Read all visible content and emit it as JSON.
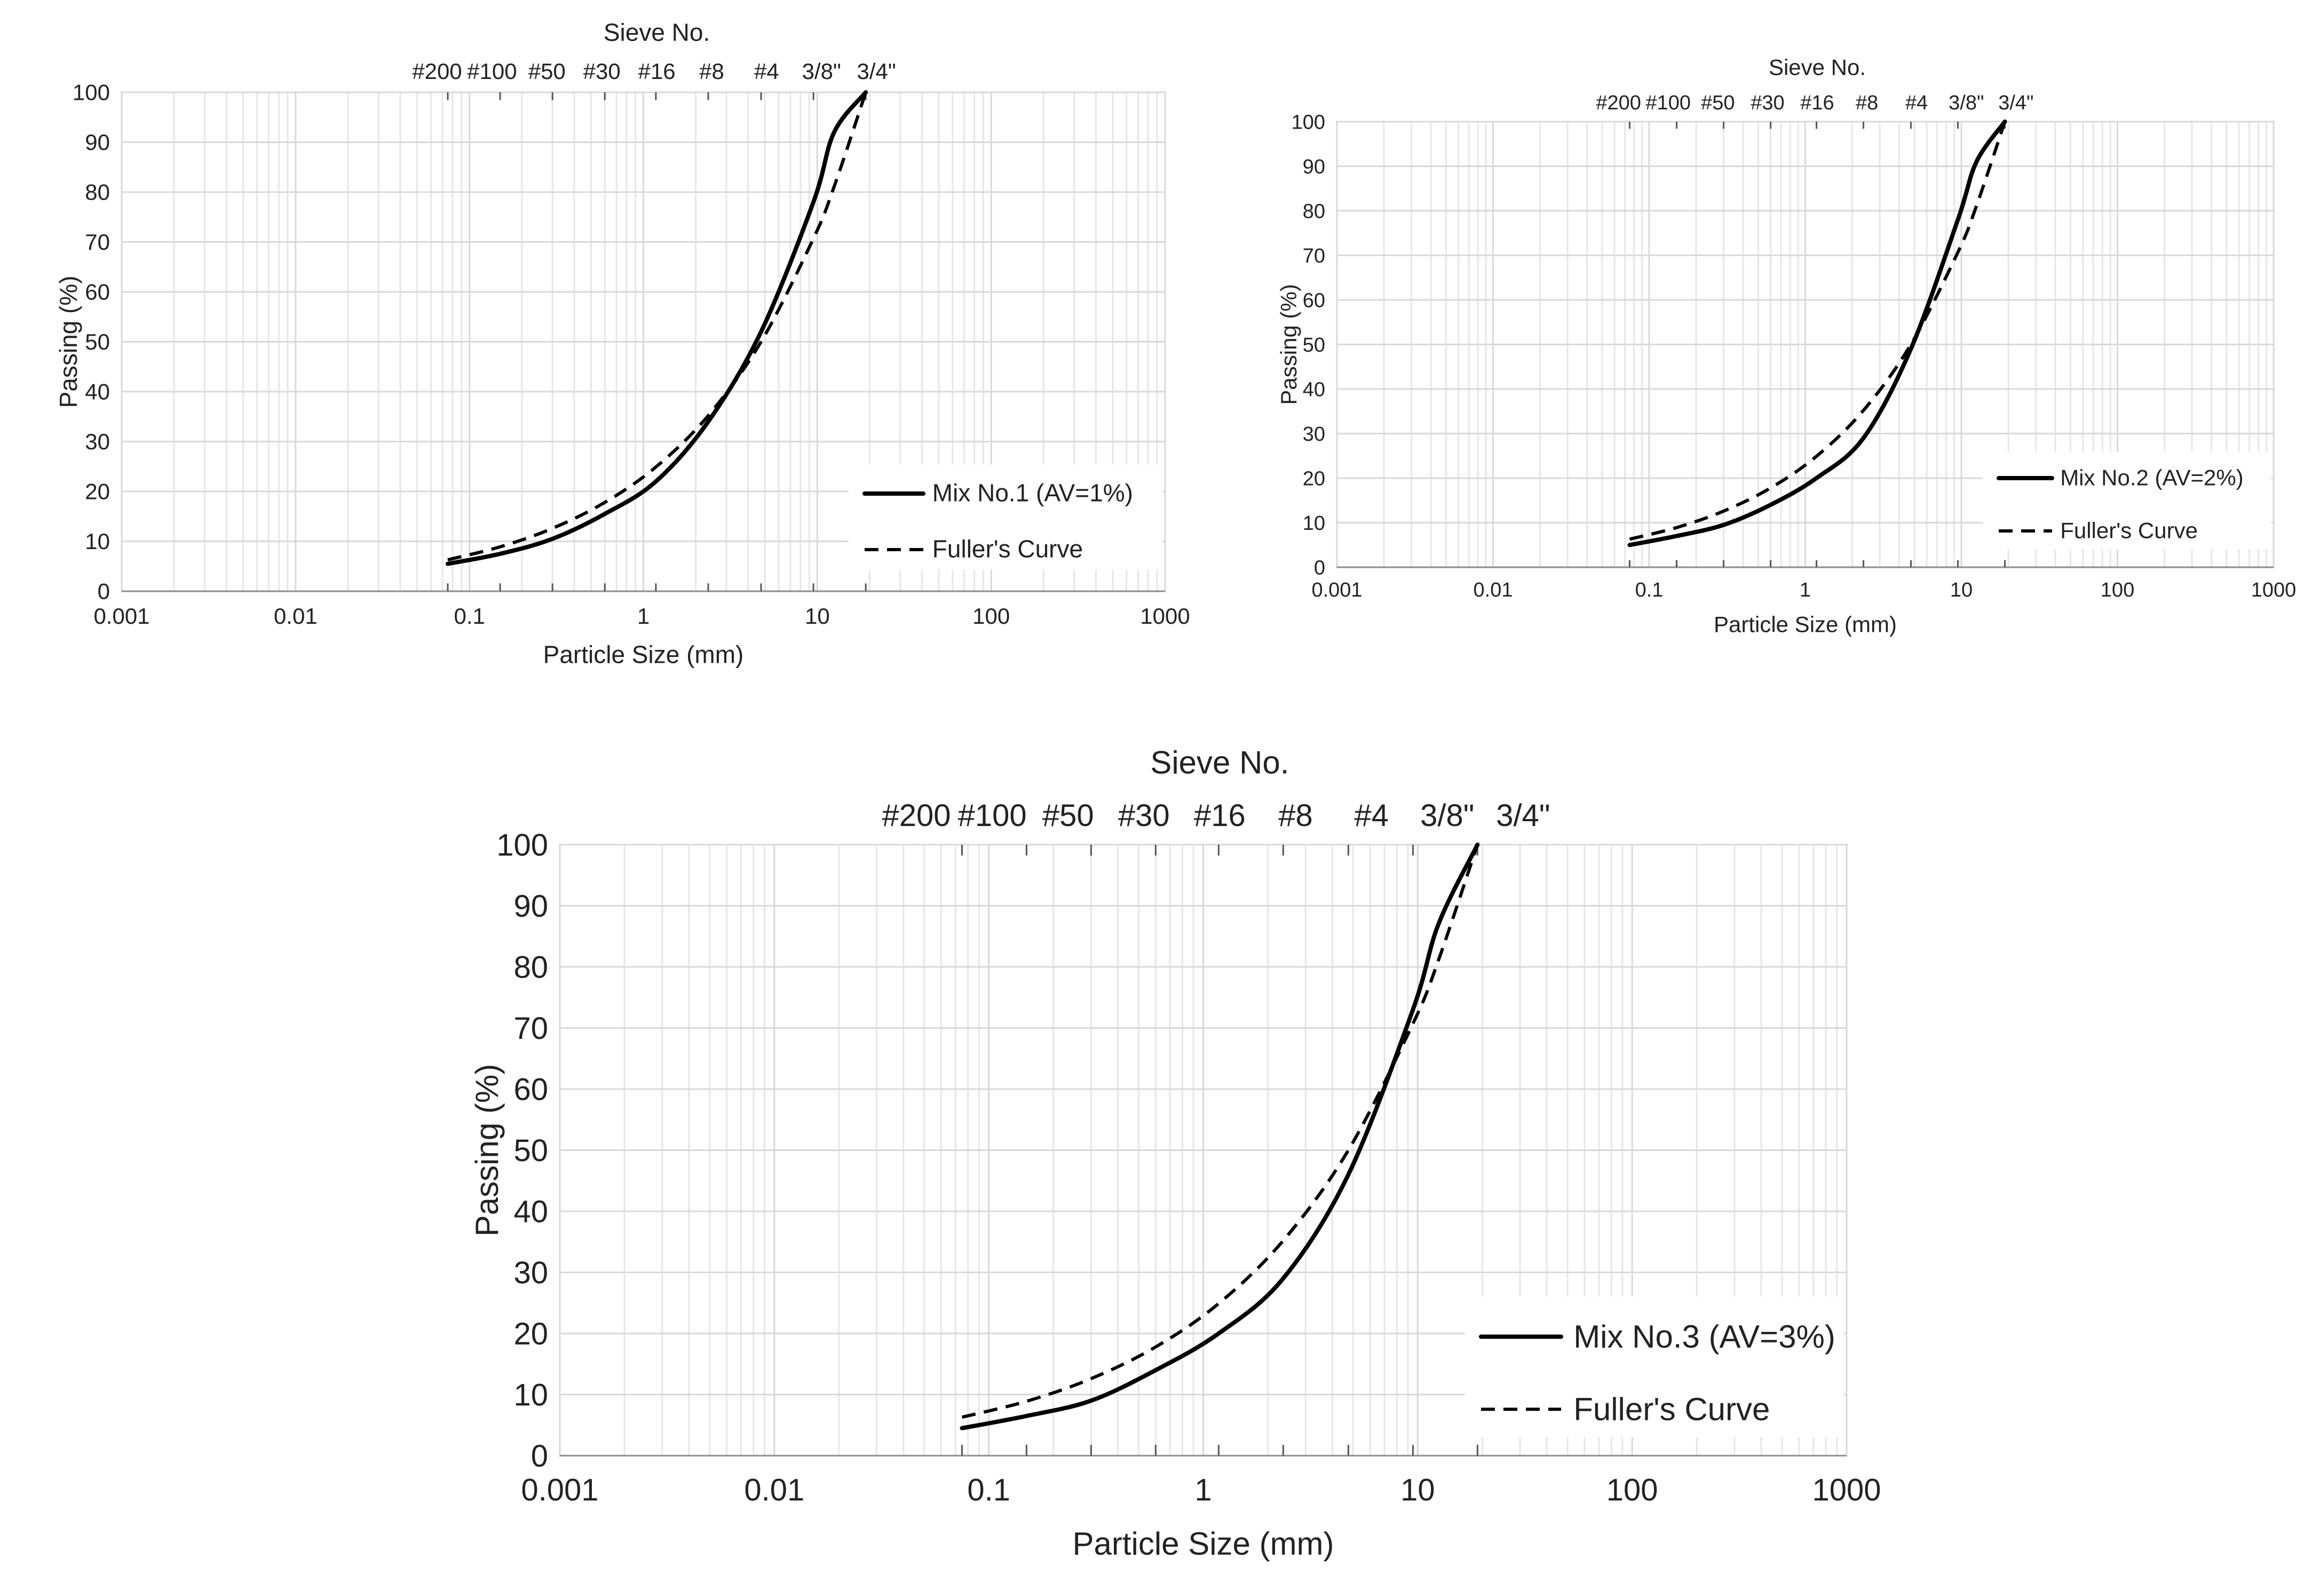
{
  "chart_data": [
    {
      "type": "line",
      "title": "",
      "top_axis_title": "Sieve No.",
      "sieve_labels": [
        "#200",
        "#100",
        "#50",
        "#30",
        "#16",
        "#8",
        "#4",
        "3/8\"",
        "3/4\""
      ],
      "sieve_sizes_mm": [
        0.075,
        0.15,
        0.3,
        0.6,
        1.18,
        2.36,
        4.75,
        9.5,
        19
      ],
      "xlabel": "Particle Size (mm)",
      "ylabel": "Passing (%)",
      "xscale": "log",
      "xlim": [
        0.001,
        1000
      ],
      "ylim": [
        0,
        100
      ],
      "x_tick_labels": [
        "0.001",
        "0.01",
        "0.1",
        "1",
        "10",
        "100",
        "1000"
      ],
      "y_tick_labels": [
        "0",
        "10",
        "20",
        "30",
        "40",
        "50",
        "60",
        "70",
        "80",
        "90",
        "100"
      ],
      "grid": true,
      "legend_position": "bottom-right",
      "x": [
        0.075,
        0.15,
        0.3,
        0.6,
        1.18,
        2.36,
        4.75,
        9.5,
        12.5,
        19
      ],
      "series": [
        {
          "name": "Mix No.1 (AV=1%)",
          "style": "solid",
          "values": [
            5.5,
            7.5,
            10.5,
            15.5,
            22,
            34,
            52,
            78,
            92,
            100
          ]
        },
        {
          "name": "Fuller's Curve",
          "style": "dashed",
          "values": [
            6.3,
            8.9,
            12.6,
            17.8,
            24.9,
            35.2,
            50,
            70.7,
            81.1,
            100
          ]
        }
      ]
    },
    {
      "type": "line",
      "title": "",
      "top_axis_title": "Sieve No.",
      "sieve_labels": [
        "#200",
        "#100",
        "#50",
        "#30",
        "#16",
        "#8",
        "#4",
        "3/8\"",
        "3/4\""
      ],
      "sieve_sizes_mm": [
        0.075,
        0.15,
        0.3,
        0.6,
        1.18,
        2.36,
        4.75,
        9.5,
        19
      ],
      "xlabel": "Particle Size (mm)",
      "ylabel": "Passing (%)",
      "xscale": "log",
      "xlim": [
        0.001,
        1000
      ],
      "ylim": [
        0,
        100
      ],
      "x_tick_labels": [
        "0.001",
        "0.01",
        "0.1",
        "1",
        "10",
        "100",
        "1000"
      ],
      "y_tick_labels": [
        "0",
        "10",
        "20",
        "30",
        "40",
        "50",
        "60",
        "70",
        "80",
        "90",
        "100"
      ],
      "grid": true,
      "legend_position": "bottom-right",
      "x": [
        0.075,
        0.15,
        0.3,
        0.6,
        1.18,
        2.36,
        4.75,
        9.5,
        12.5,
        19
      ],
      "series": [
        {
          "name": "Mix No.2 (AV=2%)",
          "style": "solid",
          "values": [
            5,
            7,
            9.5,
            14,
            20,
            29,
            49,
            78,
            91,
            100
          ]
        },
        {
          "name": "Fuller's Curve",
          "style": "dashed",
          "values": [
            6.3,
            8.9,
            12.6,
            17.8,
            24.9,
            35.2,
            50,
            70.7,
            81.1,
            100
          ]
        }
      ]
    },
    {
      "type": "line",
      "title": "",
      "top_axis_title": "Sieve No.",
      "sieve_labels": [
        "#200",
        "#100",
        "#50",
        "#30",
        "#16",
        "#8",
        "#4",
        "3/8\"",
        "3/4\""
      ],
      "sieve_sizes_mm": [
        0.075,
        0.15,
        0.3,
        0.6,
        1.18,
        2.36,
        4.75,
        9.5,
        19
      ],
      "xlabel": "Particle Size (mm)",
      "ylabel": "Passing (%)",
      "xscale": "log",
      "xlim": [
        0.001,
        1000
      ],
      "ylim": [
        0,
        100
      ],
      "x_tick_labels": [
        "0.001",
        "0.01",
        "0.1",
        "1",
        "10",
        "100",
        "1000"
      ],
      "y_tick_labels": [
        "0",
        "10",
        "20",
        "30",
        "40",
        "50",
        "60",
        "70",
        "80",
        "90",
        "100"
      ],
      "grid": true,
      "legend_position": "bottom-right",
      "x": [
        0.075,
        0.15,
        0.3,
        0.6,
        1.18,
        2.36,
        4.75,
        9.5,
        12.5,
        19
      ],
      "series": [
        {
          "name": "Mix No.3 (AV=3%)",
          "style": "solid",
          "values": [
            4.5,
            6.5,
            9,
            14,
            20,
            29,
            46,
            73,
            87,
            100
          ]
        },
        {
          "name": "Fuller's Curve",
          "style": "dashed",
          "values": [
            6.3,
            8.9,
            12.6,
            17.8,
            24.9,
            35.2,
            50,
            70.7,
            81.1,
            100
          ]
        }
      ]
    }
  ]
}
